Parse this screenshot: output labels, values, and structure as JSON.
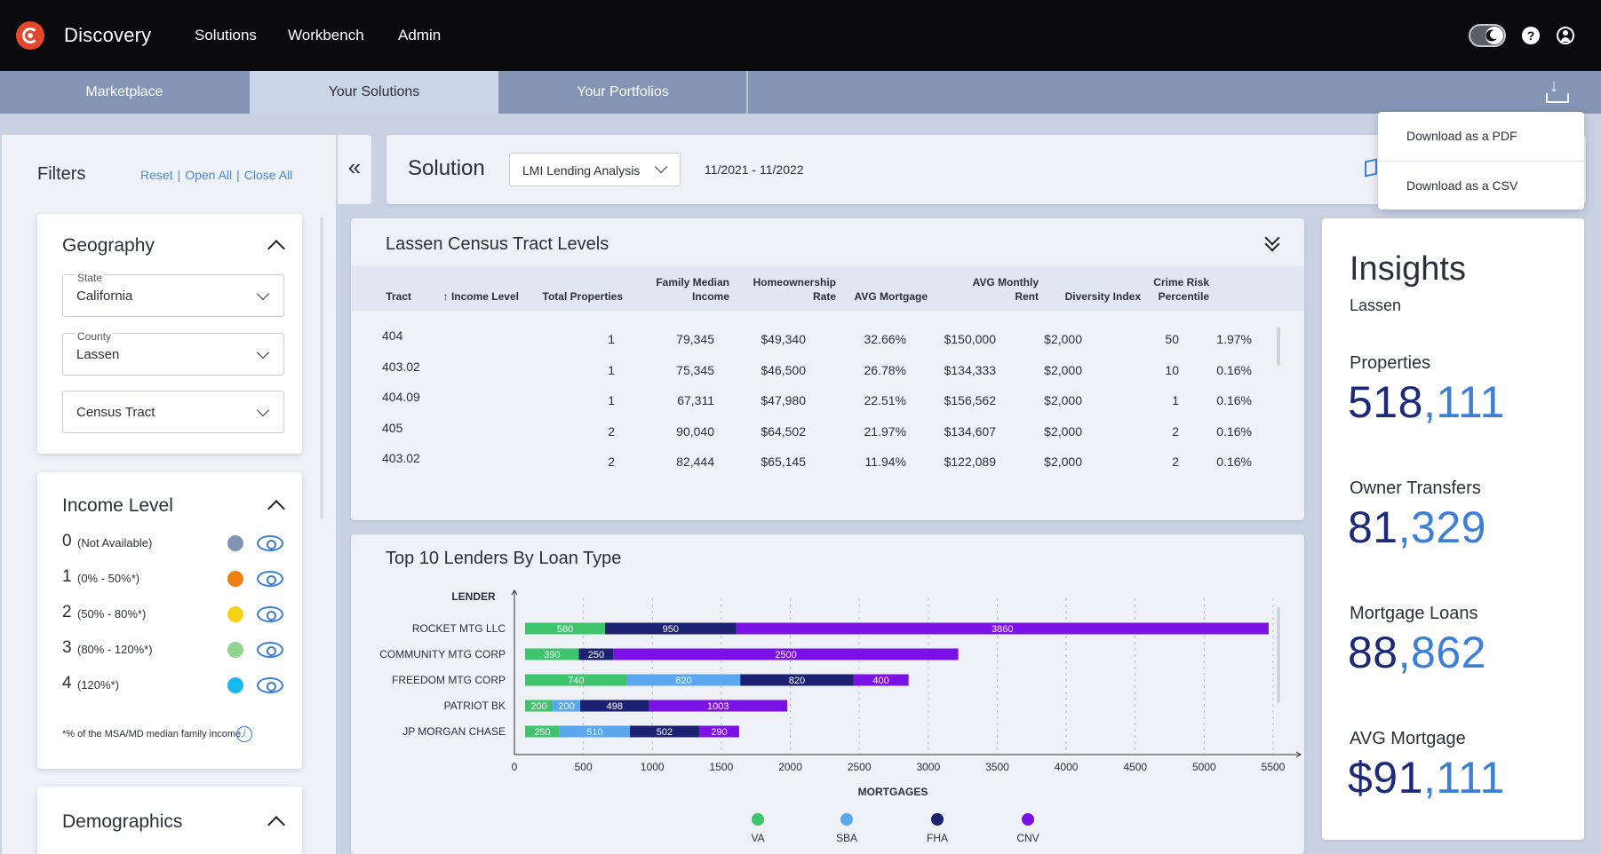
{
  "app": {
    "title": "Discovery"
  },
  "nav": [
    "Solutions",
    "Workbench",
    "Admin"
  ],
  "tabs": [
    "Marketplace",
    "Your Solutions",
    "Your Portfolios"
  ],
  "filters": {
    "title": "Filters",
    "links": [
      "Reset",
      "Open All",
      "Close All"
    ],
    "geography": {
      "title": "Geography",
      "state_label": "State",
      "state_value": "California",
      "county_label": "County",
      "county_value": "Lassen",
      "tract_placeholder": "Census Tract"
    },
    "income": {
      "title": "Income Level",
      "levels": [
        {
          "num": "0",
          "range": "(Not Available)",
          "color": "#8294b4"
        },
        {
          "num": "1",
          "range": "(0% - 50%*)",
          "color": "#f07f14"
        },
        {
          "num": "2",
          "range": "(50% - 80%*)",
          "color": "#f7d117"
        },
        {
          "num": "3",
          "range": "(80% - 120%*)",
          "color": "#8fd48b"
        },
        {
          "num": "4",
          "range": "(120%*)",
          "color": "#17b8ef"
        }
      ],
      "footnote": "*% of the MSA/MD median family income."
    },
    "demographics": {
      "title": "Demographics"
    }
  },
  "solution": {
    "label": "Solution",
    "selected": "LMI Lending Analysis",
    "date_range": "11/2021 - 11/2022"
  },
  "download_menu": [
    "Download as a PDF",
    "Download as a CSV"
  ],
  "table": {
    "title": "Lassen Census Tract Levels",
    "columns": [
      [
        "Tract"
      ],
      [
        "↑ Income Level"
      ],
      [
        "Total Properties"
      ],
      [
        "Family Median",
        "Income"
      ],
      [
        "Homeownership",
        "Rate"
      ],
      [
        "AVG Mortgage"
      ],
      [
        "AVG Monthly",
        "Rent"
      ],
      [
        "Diversity Index"
      ],
      [
        "Crime Risk",
        "Percentile"
      ]
    ],
    "rows": [
      [
        "404",
        "1",
        "79,345",
        "$49,340",
        "32.66%",
        "$150,000",
        "$2,000",
        "50",
        "1.97%"
      ],
      [
        "403.02",
        "1",
        "75,345",
        "$46,500",
        "26.78%",
        "$134,333",
        "$2,000",
        "10",
        "0.16%"
      ],
      [
        "404.09",
        "1",
        "67,311",
        "$47,980",
        "22.51%",
        "$156,562",
        "$2,000",
        "1",
        "0.16%"
      ],
      [
        "405",
        "2",
        "90,040",
        "$64,502",
        "21.97%",
        "$134,607",
        "$2,000",
        "2",
        "0.16%"
      ],
      [
        "403.02",
        "2",
        "82,444",
        "$65,145",
        "11.94%",
        "$122,089",
        "$2,000",
        "2",
        "0.16%"
      ]
    ]
  },
  "chart_data": {
    "type": "bar",
    "orientation": "horizontal",
    "stacked": true,
    "title": "Top 10 Lenders By Loan Type",
    "ylabel": "LENDER",
    "xlabel": "MORTGAGES",
    "xlim": [
      0,
      5500
    ],
    "xticks": [
      0,
      500,
      1000,
      1500,
      2000,
      2500,
      3000,
      3500,
      4000,
      4500,
      5000,
      5500
    ],
    "categories": [
      "ROCKET MTG LLC",
      "COMMUNITY MTG CORP",
      "FREEDOM MTG CORP",
      "PATRIOT BK",
      "JP MORGAN CHASE"
    ],
    "series": [
      {
        "name": "VA",
        "color": "#3ec46d",
        "values": [
          580,
          390,
          740,
          200,
          250
        ]
      },
      {
        "name": "SBA",
        "color": "#5aa7f0",
        "values": [
          0,
          0,
          820,
          200,
          510
        ]
      },
      {
        "name": "FHA",
        "color": "#1b2170",
        "values": [
          950,
          250,
          820,
          498,
          502
        ]
      },
      {
        "name": "CNV",
        "color": "#7a12e6",
        "values": [
          3860,
          2500,
          400,
          1003,
          290
        ]
      }
    ],
    "grid": "vertical-dashed",
    "legend_position": "bottom"
  },
  "insights": {
    "title": "Insights",
    "subtitle": "Lassen",
    "metrics": [
      {
        "label": "Properties",
        "hi": "518",
        "rest": ",111"
      },
      {
        "label": "Owner Transfers",
        "hi": "81",
        "rest": ",329"
      },
      {
        "label": "Mortgage Loans",
        "hi": "88",
        "rest": ",862"
      },
      {
        "label": "AVG Mortgage",
        "hi": "$91",
        "rest": ",111"
      }
    ]
  }
}
